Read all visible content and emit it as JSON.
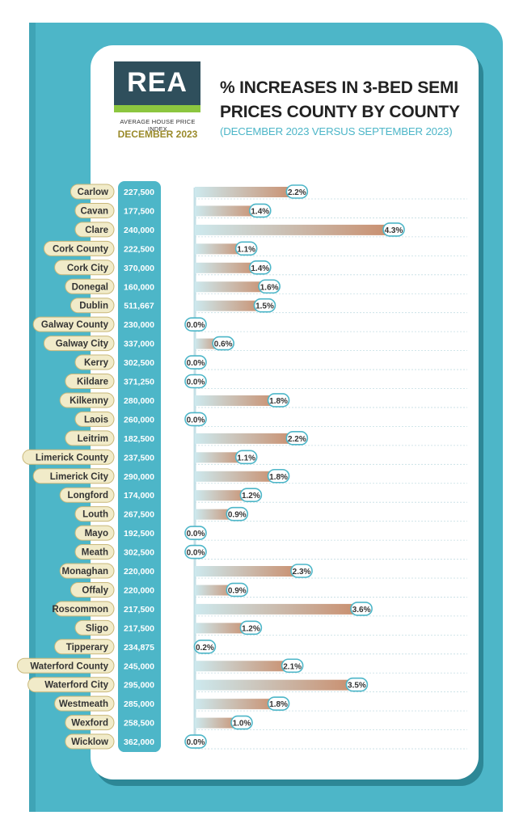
{
  "logo": {
    "brand": "REA",
    "subtitle": "AVERAGE HOUSE PRICE INDEX",
    "date": "DECEMBER 2023"
  },
  "header": {
    "title": "% INCREASES IN 3-BED SEMI PRICES COUNTY BY COUNTY",
    "subtitle": "(DECEMBER 2023 VERSUS SEPTEMBER 2023)"
  },
  "colors": {
    "teal": "#4db6c8",
    "bar_start": "#cde9ee",
    "bar_end": "#c98d6c",
    "label_bg": "#f1ebc9",
    "label_border": "#c9b87a"
  },
  "chart_data": {
    "type": "bar",
    "orientation": "horizontal",
    "title": "% INCREASES IN 3-BED SEMI PRICES COUNTY BY COUNTY",
    "subtitle": "(DECEMBER 2023 VERSUS SEPTEMBER 2023)",
    "categories": [
      "Carlow",
      "Cavan",
      "Clare",
      "Cork County",
      "Cork City",
      "Donegal",
      "Dublin",
      "Galway County",
      "Galway City",
      "Kerry",
      "Kildare",
      "Kilkenny",
      "Laois",
      "Leitrim",
      "Limerick County",
      "Limerick City",
      "Longford",
      "Louth",
      "Mayo",
      "Meath",
      "Monaghan",
      "Offaly",
      "Roscommon",
      "Sligo",
      "Tipperary",
      "Waterford County",
      "Waterford City",
      "Westmeath",
      "Wexford",
      "Wicklow"
    ],
    "prices": [
      "227,500",
      "177,500",
      "240,000",
      "222,500",
      "370,000",
      "160,000",
      "511,667",
      "230,000",
      "337,000",
      "302,500",
      "371,250",
      "280,000",
      "260,000",
      "182,500",
      "237,500",
      "290,000",
      "174,000",
      "267,500",
      "192,500",
      "302,500",
      "220,000",
      "220,000",
      "217,500",
      "217,500",
      "234,875",
      "245,000",
      "295,000",
      "285,000",
      "258,500",
      "362,000"
    ],
    "values": [
      2.2,
      1.4,
      4.3,
      1.1,
      1.4,
      1.6,
      1.5,
      0.0,
      0.6,
      0.0,
      0.0,
      1.8,
      0.0,
      2.2,
      1.1,
      1.8,
      1.2,
      0.9,
      0.0,
      0.0,
      2.3,
      0.9,
      3.6,
      1.2,
      0.2,
      2.1,
      3.5,
      1.8,
      1.0,
      0.0
    ],
    "value_labels": [
      "2.2%",
      "1.4%",
      "4.3%",
      "1.1%",
      "1.4%",
      "1.6%",
      "1.5%",
      "0.0%",
      "0.6%",
      "0.0%",
      "0.0%",
      "1.8%",
      "0.0%",
      "2.2%",
      "1.1%",
      "1.8%",
      "1.2%",
      "0.9%",
      "0.0%",
      "0.0%",
      "2.3%",
      "0.9%",
      "3.6%",
      "1.2%",
      "0.2%",
      "2.1%",
      "3.5%",
      "1.8%",
      "1.0%",
      "0.0%"
    ],
    "xlim": [
      0,
      4.6
    ],
    "grid": true
  }
}
